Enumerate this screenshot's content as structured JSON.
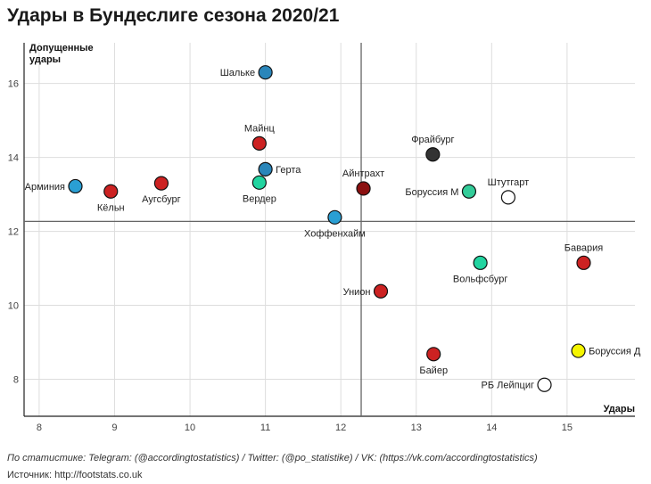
{
  "chart_data": {
    "type": "scatter",
    "title": "Удары в Бундеслиге сезона 2020/21",
    "xlabel": "Удары",
    "ylabel": "Допущенные удары",
    "xlim": [
      7.8,
      15.9
    ],
    "ylim": [
      7.0,
      17.1
    ],
    "xticks": [
      8,
      9,
      10,
      11,
      12,
      13,
      14,
      15
    ],
    "yticks": [
      8,
      10,
      12,
      14,
      16
    ],
    "grid": true,
    "reference_lines": {
      "x_mean": 12.27,
      "y_mean": 12.27
    },
    "points": [
      {
        "label": "Шальке",
        "x": 11.0,
        "y": 16.3,
        "color": "#2a86ba",
        "label_pos": "left"
      },
      {
        "label": "Майнц",
        "x": 10.92,
        "y": 14.38,
        "color": "#cc2222",
        "label_pos": "top"
      },
      {
        "label": "Фрайбург",
        "x": 13.22,
        "y": 14.08,
        "color": "#333333",
        "label_pos": "top"
      },
      {
        "label": "Герта",
        "x": 11.0,
        "y": 13.68,
        "color": "#2a86ba",
        "label_pos": "right"
      },
      {
        "label": "Вердер",
        "x": 10.92,
        "y": 13.32,
        "color": "#22d4a0",
        "label_pos": "bottom"
      },
      {
        "label": "Арминия",
        "x": 8.48,
        "y": 13.22,
        "color": "#2a9fd4",
        "label_pos": "left"
      },
      {
        "label": "Кёльн",
        "x": 8.95,
        "y": 13.08,
        "color": "#cc2222",
        "label_pos": "bottom"
      },
      {
        "label": "Аугсбург",
        "x": 9.62,
        "y": 13.3,
        "color": "#cc2222",
        "label_pos": "bottom"
      },
      {
        "label": "Айнтрахт",
        "x": 12.3,
        "y": 13.16,
        "color": "#8b1010",
        "label_pos": "top"
      },
      {
        "label": "Боруссия М",
        "x": 13.7,
        "y": 13.08,
        "color": "#33cc99",
        "label_pos": "left"
      },
      {
        "label": "Штутгарт",
        "x": 14.22,
        "y": 12.92,
        "color": "#ffffff",
        "label_pos": "top"
      },
      {
        "label": "Хоффенхайм",
        "x": 11.92,
        "y": 12.38,
        "color": "#2a9fd4",
        "label_pos": "bottom"
      },
      {
        "label": "Бавария",
        "x": 15.22,
        "y": 11.15,
        "color": "#cc2222",
        "label_pos": "top"
      },
      {
        "label": "Вольфсбург",
        "x": 13.85,
        "y": 11.15,
        "color": "#22d4a0",
        "label_pos": "bottom"
      },
      {
        "label": "Унион",
        "x": 12.53,
        "y": 10.38,
        "color": "#cc2222",
        "label_pos": "left"
      },
      {
        "label": "Боруссия Д",
        "x": 15.15,
        "y": 8.77,
        "color": "#f5f500",
        "label_pos": "right"
      },
      {
        "label": "Байер",
        "x": 13.23,
        "y": 8.68,
        "color": "#cc2222",
        "label_pos": "bottom"
      },
      {
        "label": "РБ Лейпциг",
        "x": 14.7,
        "y": 7.85,
        "color": "#ffffff",
        "label_pos": "left"
      }
    ]
  },
  "footer": {
    "credits": "По статистике: Telegram: (@accordingtostatistics) / Twitter: (@po_statistike) / VK: (https://vk.com/accordingtostatistics)",
    "source": "Источник: http://footstats.co.uk"
  }
}
